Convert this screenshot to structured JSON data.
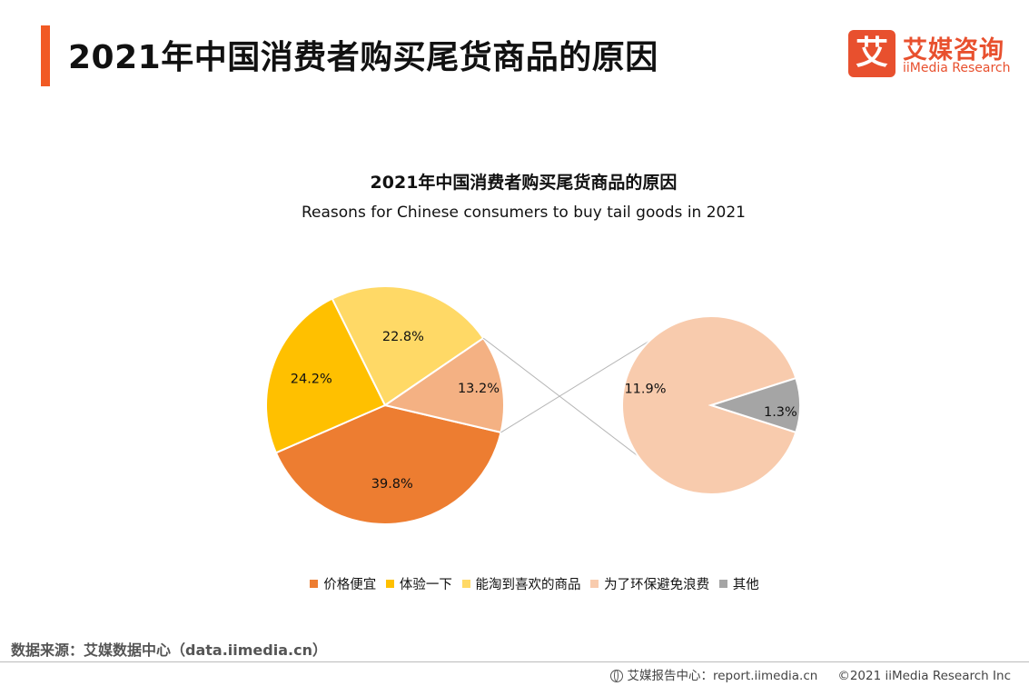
{
  "header": {
    "title": "2021年中国消费者购买尾货商品的原因",
    "accent_color": "#F15A24"
  },
  "logo": {
    "mark": "艾",
    "name_cn": "艾媒咨询",
    "name_en": "iiMedia Research",
    "brand_color": "#E8502E"
  },
  "chart_data": {
    "type": "pie",
    "title": "2021年中国消费者购买尾货商品的原因",
    "subtitle": "Reasons for Chinese consumers to buy tail goods in 2021",
    "unit": "%",
    "categories": [
      "价格便宜",
      "体验一下",
      "能淘到喜欢的商品",
      "为了环保避免浪费",
      "其他"
    ],
    "values": [
      39.8,
      24.2,
      22.8,
      11.9,
      1.3
    ],
    "labels": [
      "39.8%",
      "24.2%",
      "22.8%",
      "11.9%",
      "1.3%"
    ],
    "colors": [
      "#ED7D31",
      "#FFC000",
      "#FFD966",
      "#F8CBAD",
      "#A5A5A5"
    ],
    "main_pie": {
      "slices": [
        {
          "name": "价格便宜",
          "value": 39.8,
          "label": "39.8%",
          "color": "#ED7D31"
        },
        {
          "name": "体验一下",
          "value": 24.2,
          "label": "24.2%",
          "color": "#FFC000"
        },
        {
          "name": "能淘到喜欢的商品",
          "value": 22.8,
          "label": "22.8%",
          "color": "#FFD966"
        },
        {
          "name": "为了环保避免浪费 + 其他",
          "value": 13.2,
          "label": "13.2%",
          "color": "#F4B183"
        }
      ]
    },
    "secondary_pie": {
      "slices": [
        {
          "name": "为了环保避免浪费",
          "value": 11.9,
          "label": "11.9%",
          "color": "#F8CBAD"
        },
        {
          "name": "其他",
          "value": 1.3,
          "label": "1.3%",
          "color": "#A5A5A5"
        }
      ]
    },
    "legend_position": "bottom"
  },
  "legend": {
    "items": [
      {
        "label": "价格便宜",
        "color": "#ED7D31"
      },
      {
        "label": "体验一下",
        "color": "#FFC000"
      },
      {
        "label": "能淘到喜欢的商品",
        "color": "#FFD966"
      },
      {
        "label": "为了环保避免浪费",
        "color": "#F8CBAD"
      },
      {
        "label": "其他",
        "color": "#A5A5A5"
      }
    ]
  },
  "source": {
    "text": "数据来源：艾媒数据中心（data.iimedia.cn）"
  },
  "footer": {
    "report_label": "艾媒报告中心：report.iimedia.cn",
    "copyright": "©2021  iiMedia Research  Inc"
  }
}
